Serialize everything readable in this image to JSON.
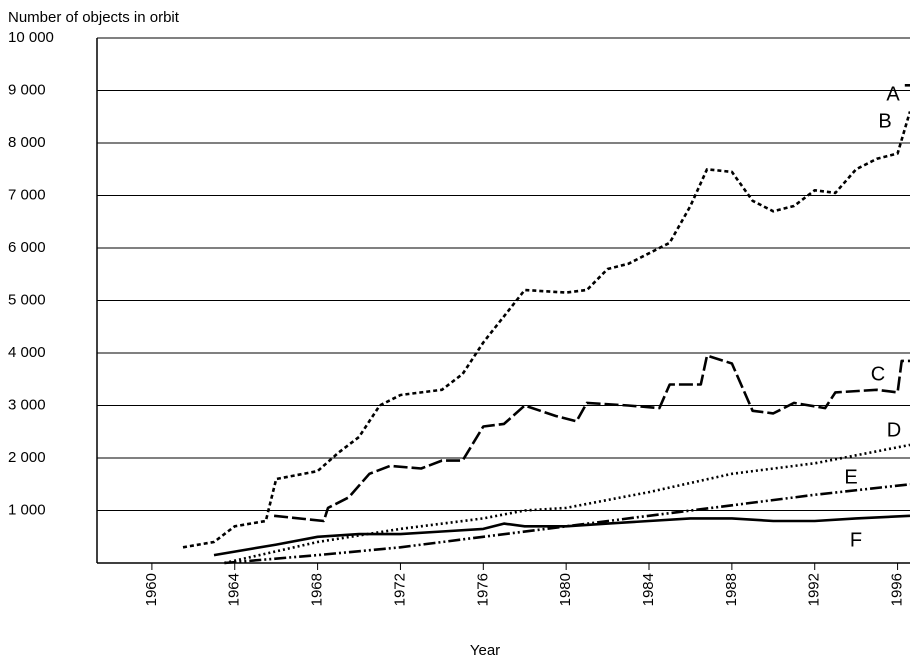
{
  "chart_data": {
    "type": "line",
    "title": "Number of objects in orbit",
    "x_label": "Year",
    "xlim": [
      1957.35,
      1996.6
    ],
    "xticks": [
      1960,
      1964,
      1968,
      1972,
      1976,
      1980,
      1984,
      1988,
      1992,
      1996
    ],
    "ylim": [
      0,
      10000
    ],
    "yticks": [
      {
        "value": 1000,
        "label": "1 000"
      },
      {
        "value": 2000,
        "label": "2 000"
      },
      {
        "value": 3000,
        "label": "3 000"
      },
      {
        "value": 4000,
        "label": "4 000"
      },
      {
        "value": 5000,
        "label": "5 000"
      },
      {
        "value": 6000,
        "label": "6 000"
      },
      {
        "value": 7000,
        "label": "7 000"
      },
      {
        "value": 8000,
        "label": "8 000"
      },
      {
        "value": 9000,
        "label": "9 000"
      },
      {
        "value": 10000,
        "label": "10 000"
      }
    ],
    "grid": true,
    "series": [
      {
        "name": "A",
        "color": "#000000",
        "dash": "none",
        "x": [
          1996.35,
          1996.6
        ],
        "values": [
          9100,
          9100
        ]
      },
      {
        "name": "B",
        "color": "#000000",
        "dash": "4,3",
        "x": [
          1961.5,
          1963,
          1964,
          1965.5,
          1966,
          1968,
          1969,
          1970,
          1971,
          1972,
          1974,
          1975,
          1976,
          1977,
          1978,
          1980,
          1981,
          1982,
          1983,
          1984,
          1985,
          1986,
          1986.8,
          1988,
          1989,
          1990,
          1991,
          1992,
          1993,
          1994,
          1995,
          1996,
          1996.6
        ],
        "values": [
          300,
          400,
          700,
          800,
          1600,
          1750,
          2100,
          2400,
          3000,
          3200,
          3300,
          3600,
          4200,
          4700,
          5200,
          5150,
          5200,
          5600,
          5700,
          5900,
          6100,
          6800,
          7500,
          7450,
          6900,
          6700,
          6800,
          7100,
          7050,
          7500,
          7700,
          7800,
          8600
        ]
      },
      {
        "name": "C",
        "color": "#000000",
        "dash": "14,4",
        "x": [
          1965.9,
          1968.3,
          1968.5,
          1969.5,
          1970.5,
          1971.5,
          1973,
          1974,
          1975,
          1976,
          1977,
          1978,
          1979.5,
          1980.5,
          1981,
          1983,
          1984.5,
          1985,
          1986.5,
          1986.8,
          1988,
          1989,
          1990,
          1991,
          1992.5,
          1993,
          1995,
          1996,
          1996.2,
          1996.6
        ],
        "values": [
          900,
          800,
          1050,
          1250,
          1700,
          1850,
          1800,
          1950,
          1950,
          2600,
          2650,
          3000,
          2800,
          2700,
          3050,
          3000,
          2950,
          3400,
          3400,
          3950,
          3800,
          2900,
          2850,
          3050,
          2950,
          3250,
          3300,
          3250,
          3850,
          3850
        ]
      },
      {
        "name": "D",
        "color": "#000000",
        "dash": "2,3",
        "x": [
          1963.5,
          1968,
          1972,
          1976,
          1978,
          1980,
          1984,
          1988,
          1992,
          1996.6
        ],
        "values": [
          0,
          400,
          650,
          850,
          1000,
          1050,
          1350,
          1700,
          1900,
          2250
        ]
      },
      {
        "name": "E",
        "color": "#000000",
        "dash": "12,3,2,3,2,3",
        "x": [
          1963.5,
          1968,
          1972,
          1976,
          1980,
          1984,
          1988,
          1992,
          1996.6
        ],
        "values": [
          0,
          150,
          300,
          500,
          700,
          900,
          1100,
          1300,
          1500
        ]
      },
      {
        "name": "F",
        "color": "#000000",
        "dash": "none",
        "x": [
          1963,
          1966,
          1968,
          1970,
          1972,
          1974,
          1976,
          1977,
          1978,
          1980,
          1982,
          1984,
          1986,
          1988,
          1990,
          1992,
          1994,
          1996.6
        ],
        "values": [
          150,
          350,
          500,
          550,
          550,
          600,
          650,
          750,
          700,
          700,
          750,
          800,
          850,
          850,
          800,
          800,
          850,
          900
        ]
      }
    ]
  }
}
